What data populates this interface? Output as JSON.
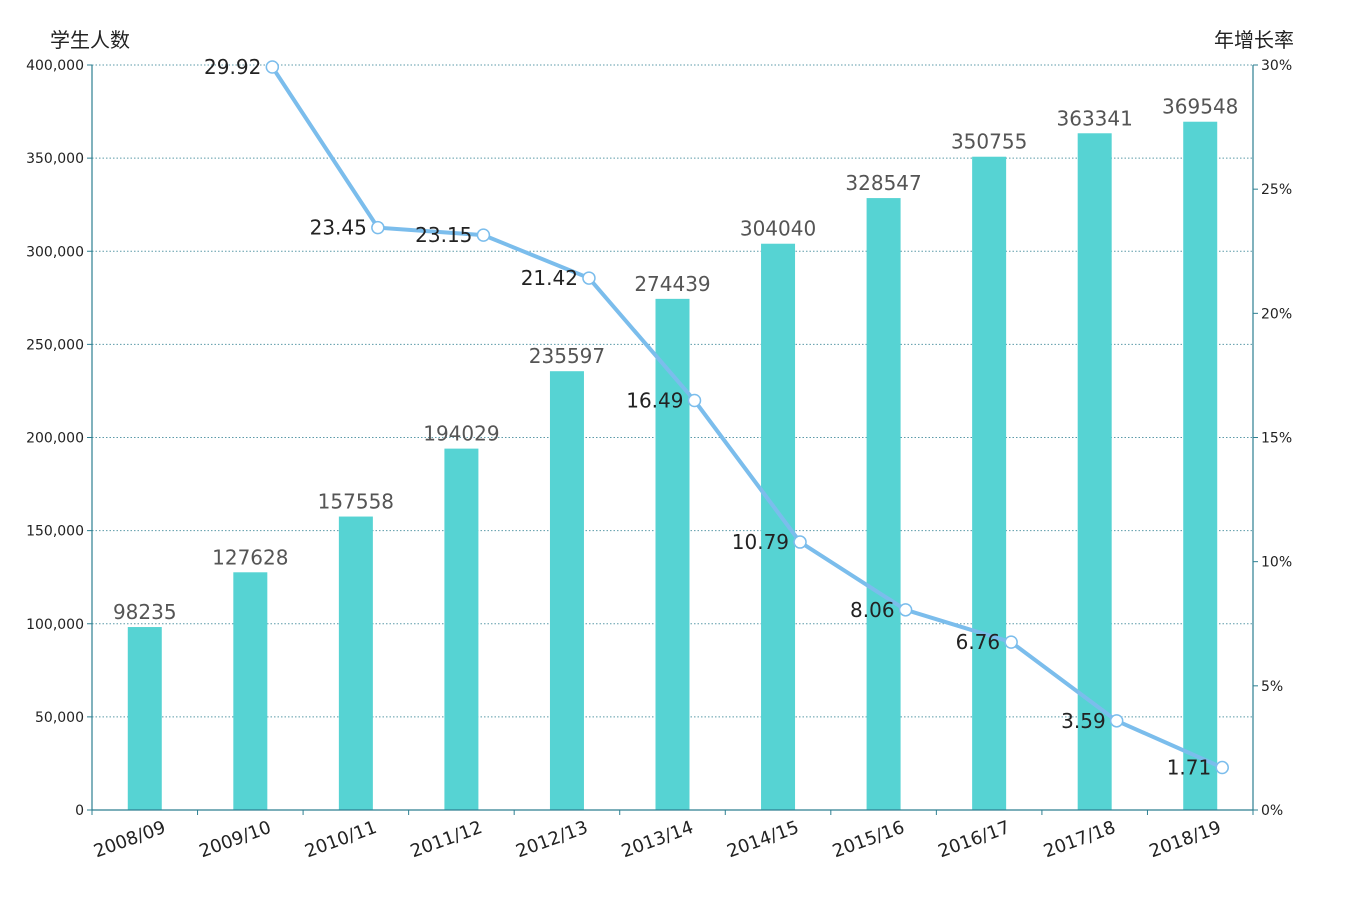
{
  "chart_data": {
    "type": "bar",
    "title": "",
    "categories": [
      "2008/09",
      "2009/10",
      "2010/11",
      "2011/12",
      "2012/13",
      "2013/14",
      "2014/15",
      "2015/16",
      "2016/17",
      "2017/18",
      "2018/19"
    ],
    "series": [
      {
        "type": "bar",
        "axis": "left",
        "color": "#56d3d3",
        "values": [
          98235,
          127628,
          157558,
          194029,
          235597,
          274439,
          304040,
          328547,
          350755,
          363341,
          369548
        ]
      },
      {
        "type": "line",
        "axis": "right",
        "color": "#7bbdec",
        "values": [
          null,
          29.92,
          23.45,
          23.15,
          21.42,
          16.49,
          10.79,
          8.06,
          6.76,
          3.59,
          1.71
        ]
      }
    ],
    "y_left": {
      "label": "学生人数",
      "range": [
        0,
        400000
      ],
      "ticks": [
        "0",
        "50,000",
        "100,000",
        "150,000",
        "200,000",
        "250,000",
        "300,000",
        "350,000",
        "400,000"
      ]
    },
    "y_right": {
      "label": "年增长率",
      "range": [
        0,
        30
      ],
      "ticks": [
        "0%",
        "5%",
        "10%",
        "15%",
        "20%",
        "25%",
        "30%"
      ]
    },
    "grid": true,
    "legend": "none",
    "colors": {
      "bar": "#56d3d3",
      "line": "#7bbdec",
      "axis": "#2d7f91",
      "grid": "#5b9aa8"
    }
  }
}
